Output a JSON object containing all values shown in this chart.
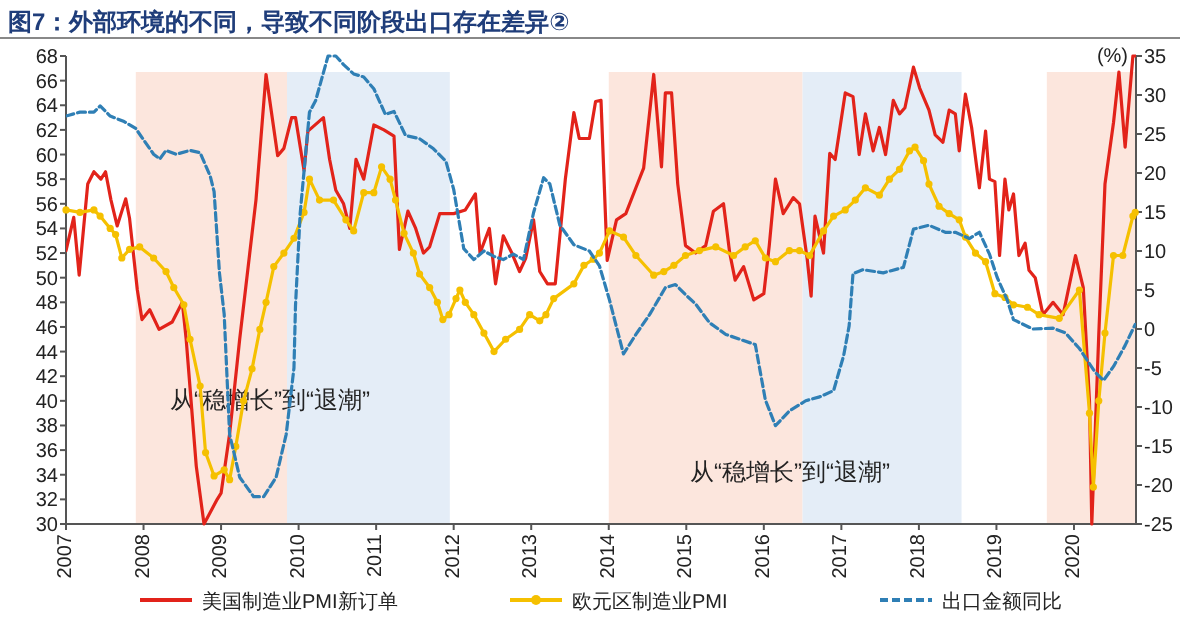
{
  "chart_data": {
    "type": "line",
    "title": "图7：外部环境的不同，导致不同阶段出口存在差异②",
    "y2label": "(%)",
    "legend": "bottom",
    "xlim": [
      2007,
      2020.8
    ],
    "xticks": [
      2007,
      2008,
      2009,
      2010,
      2011,
      2012,
      2013,
      2014,
      2015,
      2016,
      2017,
      2018,
      2019,
      2020
    ],
    "ylim": [
      30,
      68
    ],
    "yticks": [
      30,
      32,
      34,
      36,
      38,
      40,
      42,
      44,
      46,
      48,
      50,
      52,
      54,
      56,
      58,
      60,
      62,
      64,
      66,
      68
    ],
    "y2lim": [
      -25,
      35
    ],
    "y2ticks": [
      -25,
      -20,
      -15,
      -10,
      -5,
      0,
      5,
      10,
      15,
      20,
      25,
      30,
      35
    ],
    "bands": [
      {
        "axis": "x",
        "from": 2007.9,
        "to": 2009.85,
        "color": "#fce6dd"
      },
      {
        "axis": "x",
        "from": 2009.85,
        "to": 2011.95,
        "color": "#e4edf7"
      },
      {
        "axis": "x",
        "from": 2014.0,
        "to": 2016.5,
        "color": "#fce6dd"
      },
      {
        "axis": "x",
        "from": 2016.5,
        "to": 2018.55,
        "color": "#e4edf7"
      },
      {
        "axis": "x",
        "from": 2019.65,
        "to": 2020.8,
        "color": "#fce6dd"
      }
    ],
    "annotations": [
      "从“稳增长”到“退潮”",
      "从“稳增长”到“退潮”"
    ],
    "series": [
      {
        "name": "美国制造业PMI新订单",
        "color": "#e2231a",
        "marker": "none",
        "line_style": "solid",
        "x": [
          2007.0,
          2007.1,
          2007.17,
          2007.28,
          2007.36,
          2007.45,
          2007.51,
          2007.58,
          2007.66,
          2007.77,
          2007.82,
          2007.92,
          2007.98,
          2008.08,
          2008.2,
          2008.37,
          2008.5,
          2008.55,
          2008.68,
          2008.78,
          2008.95,
          2009.0,
          2009.11,
          2009.24,
          2009.37,
          2009.45,
          2009.58,
          2009.73,
          2009.81,
          2009.91,
          2009.96,
          2010.07,
          2010.12,
          2010.32,
          2010.4,
          2010.48,
          2010.58,
          2010.66,
          2010.74,
          2010.84,
          2010.97,
          2011.1,
          2011.23,
          2011.3,
          2011.41,
          2011.51,
          2011.61,
          2011.69,
          2011.82,
          2012.0,
          2012.15,
          2012.28,
          2012.34,
          2012.46,
          2012.54,
          2012.64,
          2012.75,
          2012.85,
          2012.93,
          2013.03,
          2013.11,
          2013.21,
          2013.31,
          2013.44,
          2013.55,
          2013.62,
          2013.75,
          2013.83,
          2013.9,
          2013.98,
          2014.1,
          2014.22,
          2014.35,
          2014.45,
          2014.58,
          2014.68,
          2014.73,
          2014.81,
          2014.89,
          2014.99,
          2015.12,
          2015.25,
          2015.35,
          2015.48,
          2015.56,
          2015.63,
          2015.74,
          2015.87,
          2016.0,
          2016.07,
          2016.15,
          2016.25,
          2016.38,
          2016.46,
          2016.56,
          2016.61,
          2016.66,
          2016.77,
          2016.85,
          2016.92,
          2017.05,
          2017.15,
          2017.23,
          2017.31,
          2017.41,
          2017.49,
          2017.57,
          2017.67,
          2017.75,
          2017.82,
          2017.93,
          2018.01,
          2018.13,
          2018.21,
          2018.31,
          2018.39,
          2018.47,
          2018.52,
          2018.6,
          2018.68,
          2018.78,
          2018.86,
          2018.91,
          2018.98,
          2019.04,
          2019.11,
          2019.16,
          2019.22,
          2019.29,
          2019.37,
          2019.42,
          2019.5,
          2019.6,
          2019.73,
          2019.86,
          2020.02,
          2020.12,
          2020.2,
          2020.23,
          2020.32,
          2020.4,
          2020.51,
          2020.58,
          2020.66,
          2020.76,
          2020.79
        ],
        "values": [
          52.2,
          54.9,
          50.2,
          57.6,
          58.6,
          58,
          58.6,
          56.3,
          54.2,
          56.4,
          54.8,
          49,
          46.6,
          47.4,
          45.8,
          46.4,
          48,
          45,
          34.7,
          30,
          32,
          32.5,
          37.3,
          45,
          52,
          56.3,
          66.5,
          59.9,
          60.5,
          63,
          63,
          58.7,
          61.9,
          63,
          59.6,
          57.1,
          56,
          54,
          59.6,
          58,
          62.4,
          62,
          61.5,
          52.3,
          55.4,
          54,
          52,
          52.5,
          55.2,
          55.2,
          55.5,
          56.8,
          52,
          54,
          49.5,
          53.4,
          52,
          50.5,
          51.6,
          54.7,
          50.5,
          49.5,
          49.5,
          58,
          63.4,
          61.3,
          61.3,
          64.3,
          64.4,
          51.4,
          54.7,
          55.2,
          57.3,
          58.9,
          66.5,
          59,
          65,
          65,
          57.6,
          52.6,
          52,
          52.6,
          55.4,
          56,
          52,
          49.8,
          50.9,
          48.2,
          48.7,
          52.6,
          58,
          55.2,
          56.5,
          56,
          51.5,
          48.5,
          55,
          52,
          60.1,
          59.6,
          65,
          64.7,
          60,
          63.3,
          60.3,
          62.2,
          60,
          64.4,
          63.3,
          63.8,
          67.1,
          65.4,
          63.6,
          61.6,
          61,
          63.6,
          63.3,
          60.3,
          64.9,
          62.2,
          57.3,
          61.9,
          58,
          57.8,
          51.8,
          58,
          55.5,
          56.8,
          51.8,
          52.8,
          50.6,
          50,
          47,
          48,
          47,
          51.8,
          49.2,
          40,
          30,
          45.4,
          57.6,
          62.6,
          66.7,
          60.6,
          68,
          68
        ]
      },
      {
        "name": "欧元区制造业PMI",
        "color": "#f5c000",
        "marker": "circle",
        "line_style": "solid",
        "x": [
          2007.0,
          2007.18,
          2007.36,
          2007.44,
          2007.57,
          2007.64,
          2007.72,
          2007.82,
          2007.95,
          2008.13,
          2008.29,
          2008.39,
          2008.52,
          2008.6,
          2008.73,
          2008.8,
          2008.91,
          2009.04,
          2009.11,
          2009.19,
          2009.29,
          2009.4,
          2009.5,
          2009.58,
          2009.68,
          2009.81,
          2009.94,
          2010.07,
          2010.14,
          2010.27,
          2010.45,
          2010.61,
          2010.71,
          2010.84,
          2010.97,
          2011.07,
          2011.18,
          2011.25,
          2011.36,
          2011.48,
          2011.56,
          2011.69,
          2011.79,
          2011.86,
          2011.94,
          2012.03,
          2012.08,
          2012.15,
          2012.26,
          2012.39,
          2012.52,
          2012.67,
          2012.85,
          2012.98,
          2013.11,
          2013.19,
          2013.29,
          2013.55,
          2013.68,
          2013.8,
          2013.88,
          2014.01,
          2014.19,
          2014.35,
          2014.58,
          2014.71,
          2014.84,
          2014.99,
          2015.17,
          2015.38,
          2015.61,
          2015.76,
          2015.89,
          2016.02,
          2016.15,
          2016.33,
          2016.46,
          2016.59,
          2016.77,
          2016.9,
          2017.05,
          2017.18,
          2017.31,
          2017.49,
          2017.62,
          2017.75,
          2017.88,
          2017.95,
          2018.06,
          2018.13,
          2018.26,
          2018.39,
          2018.52,
          2018.6,
          2018.73,
          2018.86,
          2018.98,
          2019.11,
          2019.22,
          2019.4,
          2019.55,
          2019.81,
          2020.07,
          2020.2,
          2020.25,
          2020.32,
          2020.4,
          2020.51,
          2020.63,
          2020.76,
          2020.79
        ],
        "values": [
          55.5,
          55.3,
          55.5,
          55,
          54,
          53.5,
          51.6,
          52.3,
          52.5,
          51.6,
          50.5,
          49.2,
          47.8,
          45,
          41.2,
          35.8,
          33.9,
          34.4,
          33.6,
          36.3,
          40,
          42.6,
          45.8,
          48,
          50.9,
          52,
          53.2,
          55.3,
          58,
          56.3,
          56.3,
          54.7,
          53.8,
          56.9,
          56.9,
          59,
          58,
          56.3,
          53.6,
          52,
          50.3,
          49.2,
          48,
          46.6,
          47,
          48.3,
          49,
          48,
          47,
          45.5,
          44,
          45,
          45.8,
          47,
          46.5,
          47,
          48.3,
          49.5,
          51,
          51.5,
          52,
          53.8,
          53.3,
          51.8,
          50.2,
          50.5,
          51,
          51.8,
          52.2,
          52.5,
          51.8,
          52.5,
          53,
          51.6,
          51.3,
          52.2,
          52.2,
          51.8,
          53.8,
          55,
          55.5,
          56.3,
          57.3,
          56.7,
          58,
          58.8,
          60.3,
          60.6,
          59.5,
          57.6,
          55.8,
          55.2,
          54.7,
          53.3,
          52,
          51.3,
          48.7,
          48.4,
          47.8,
          47.6,
          47,
          46.7,
          49,
          39,
          33,
          40,
          45.5,
          51.8,
          51.8,
          55,
          55.3
        ]
      },
      {
        "name": "出口金额同比",
        "color": "#2f7fb5",
        "marker": "none",
        "line_style": "dashed",
        "axis": "y2",
        "x": [
          2007.0,
          2007.18,
          2007.36,
          2007.44,
          2007.57,
          2007.75,
          2007.9,
          2008.13,
          2008.21,
          2008.29,
          2008.42,
          2008.6,
          2008.73,
          2008.86,
          2008.91,
          2008.98,
          2009.04,
          2009.11,
          2009.24,
          2009.42,
          2009.55,
          2009.71,
          2009.84,
          2009.94,
          2009.96,
          2010.02,
          2010.14,
          2010.22,
          2010.38,
          2010.48,
          2010.58,
          2010.71,
          2010.84,
          2010.97,
          2011.12,
          2011.23,
          2011.38,
          2011.56,
          2011.74,
          2011.9,
          2012.0,
          2012.13,
          2012.26,
          2012.39,
          2012.52,
          2012.64,
          2012.77,
          2012.9,
          2013.03,
          2013.16,
          2013.24,
          2013.37,
          2013.55,
          2013.75,
          2013.88,
          2014.01,
          2014.19,
          2014.35,
          2014.53,
          2014.73,
          2014.86,
          2014.99,
          2015.12,
          2015.3,
          2015.51,
          2015.89,
          2016.02,
          2016.15,
          2016.33,
          2016.54,
          2016.72,
          2016.9,
          2017.03,
          2017.1,
          2017.15,
          2017.28,
          2017.54,
          2017.8,
          2017.93,
          2018.13,
          2018.34,
          2018.47,
          2018.65,
          2018.78,
          2018.91,
          2019.01,
          2019.14,
          2019.22,
          2019.47,
          2019.73,
          2019.89,
          2020.07,
          2020.27,
          2020.38,
          2020.51,
          2020.66,
          2020.79
        ],
        "values": [
          27.3,
          27.8,
          27.8,
          28.6,
          27.3,
          26.6,
          25.7,
          22.4,
          21.8,
          22.9,
          22.4,
          22.9,
          22.6,
          19.6,
          17.6,
          7.1,
          1.9,
          -13.5,
          -19,
          -21.5,
          -21.5,
          -19,
          -13.5,
          -5,
          3,
          14.8,
          27.8,
          29.3,
          35,
          35,
          33.9,
          32.7,
          32.3,
          30.8,
          27.5,
          27.9,
          24.8,
          24.4,
          23.1,
          21.5,
          17.9,
          10.3,
          8.9,
          10,
          9.3,
          8.9,
          9.6,
          8.9,
          14.9,
          19.4,
          18.6,
          13.3,
          10.8,
          10,
          8.1,
          3.7,
          -3.2,
          -0.7,
          1.9,
          5.3,
          5.7,
          4.4,
          3.2,
          0.8,
          -0.7,
          -2,
          -9.1,
          -12.4,
          -10.5,
          -9.2,
          -8.7,
          -7.9,
          -3.4,
          0.4,
          7.1,
          7.6,
          7.2,
          7.9,
          12.8,
          13.3,
          12.4,
          12.4,
          11.6,
          12.4,
          9.6,
          6.6,
          3.7,
          1.2,
          0,
          0.1,
          -0.5,
          -2.5,
          -5.5,
          -6.6,
          -4.8,
          -2.1,
          0.6
        ]
      }
    ]
  }
}
